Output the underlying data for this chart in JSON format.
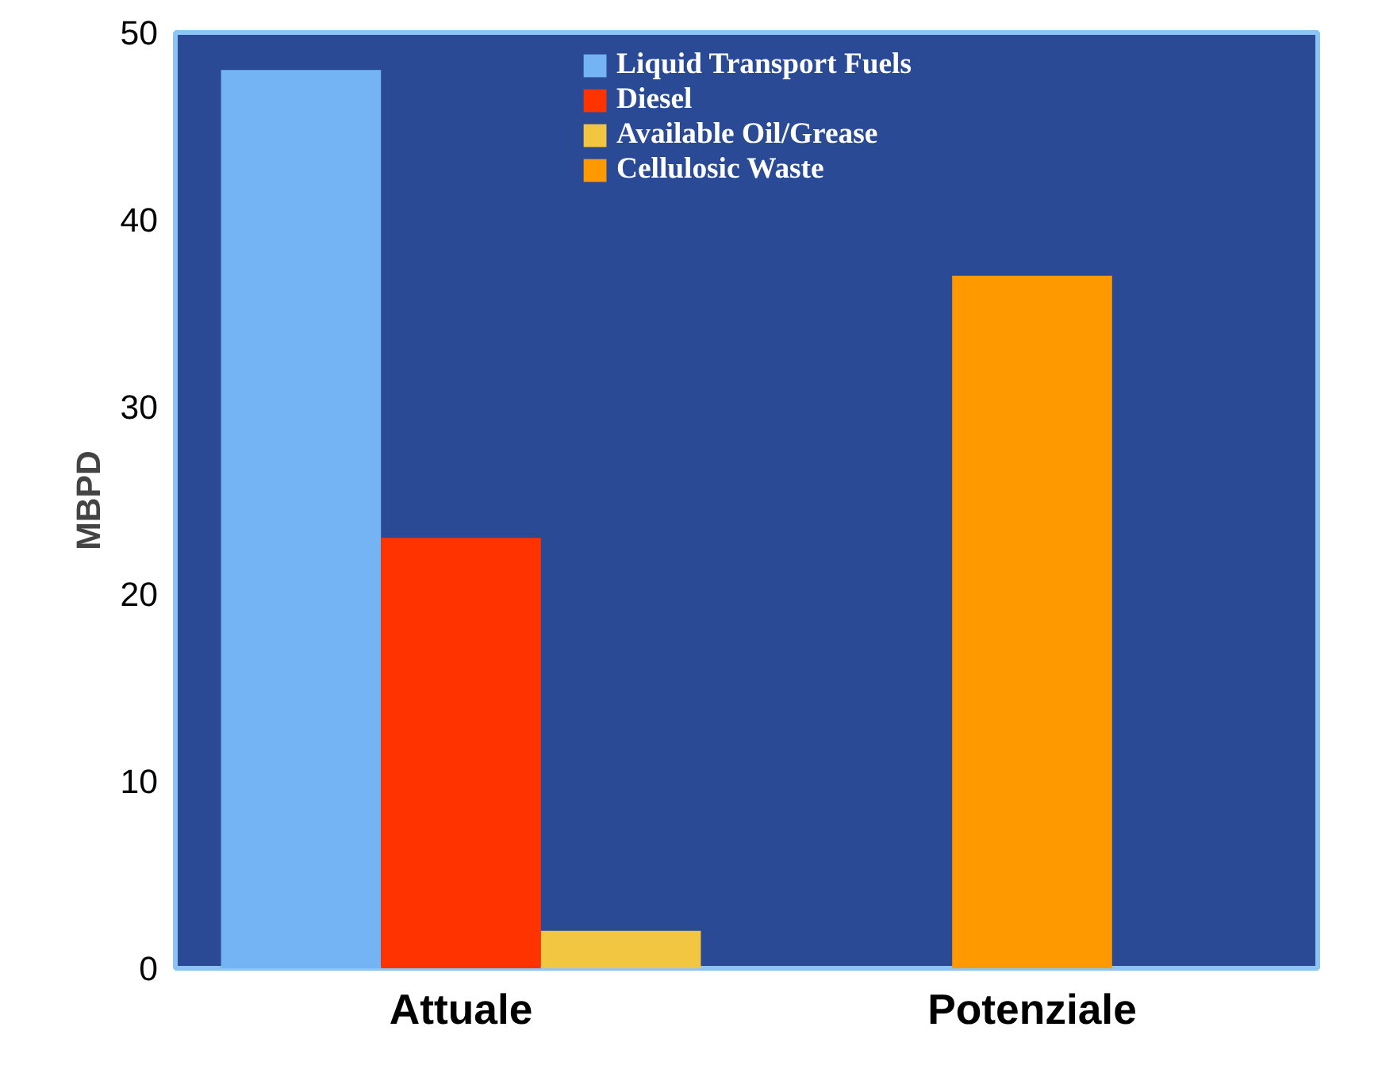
{
  "chart_data": {
    "type": "bar",
    "ylabel": "MBPD",
    "categories": [
      "Attuale",
      "Potenziale"
    ],
    "series": [
      {
        "name": "Liquid Transport Fuels",
        "color": "#74b4f4",
        "values": [
          48,
          null
        ]
      },
      {
        "name": "Diesel",
        "color": "#ff3300",
        "values": [
          23,
          null
        ]
      },
      {
        "name": "Available Oil/Grease",
        "color": "#f2c640",
        "values": [
          2,
          null
        ]
      },
      {
        "name": "Cellulosic Waste",
        "color": "#ff9900",
        "values": [
          null,
          37
        ]
      }
    ],
    "ylim": [
      0,
      50
    ],
    "yticks": [
      0,
      10,
      20,
      30,
      40,
      50
    ],
    "grid": false,
    "legend": "top"
  }
}
